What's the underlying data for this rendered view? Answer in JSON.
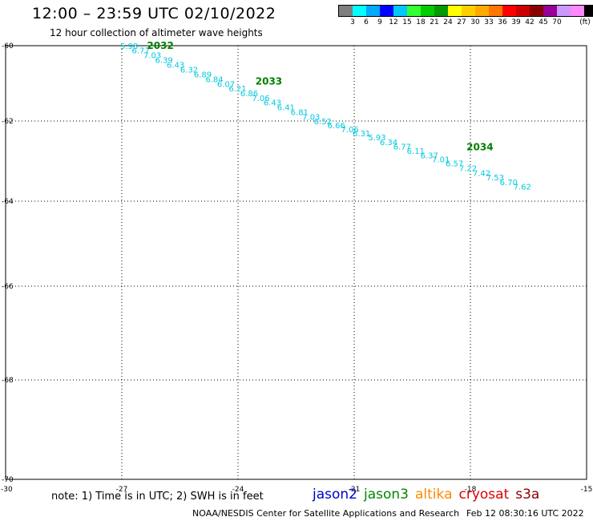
{
  "title": "12:00 – 23:59 UTC 02/10/2022",
  "subtitle": "12 hour collection of altimeter wave heights",
  "scale": {
    "colors": [
      "#7f7f7f",
      "#00ffff",
      "#00aaff",
      "#0000ff",
      "#00c8ff",
      "#33ff33",
      "#00cc00",
      "#009900",
      "#ffff00",
      "#ffd000",
      "#ffaa00",
      "#ff7700",
      "#ff0000",
      "#cc0000",
      "#880000",
      "#990099",
      "#cc99ff",
      "#ff88ff",
      "#000000"
    ],
    "labels": [
      "3",
      "6",
      "9",
      "12",
      "15",
      "18",
      "21",
      "24",
      "27",
      "30",
      "33",
      "36",
      "39",
      "42",
      "45",
      "70"
    ],
    "unit": "(ft)"
  },
  "axes": {
    "lon_range": [
      -30,
      -15
    ],
    "lat_range": [
      -70,
      -60
    ],
    "lon_ticks": [
      -27,
      -24,
      -21,
      -18,
      -15
    ],
    "lat_ticks": [
      -60,
      -62,
      -64,
      -66,
      -68,
      -70
    ],
    "corner_label": "-30",
    "lon_tick_labels": [
      "-27",
      "-24",
      "-21",
      "-18",
      "-15"
    ],
    "lat_tick_labels": [
      "-60",
      "-62",
      "-64",
      "-66",
      "-68",
      "-70"
    ]
  },
  "track": {
    "color": "#00c8e0",
    "label_color": "#008000",
    "points": [
      {
        "lon": -27.0,
        "lat": -60.0,
        "swh": "5.98"
      },
      {
        "lon": -26.7,
        "lat": -60.12,
        "swh": "6.77"
      },
      {
        "lon": -26.4,
        "lat": -60.24,
        "swh": "7.03"
      },
      {
        "lon": -26.1,
        "lat": -60.37,
        "swh": "6.39"
      },
      {
        "lon": -25.8,
        "lat": -60.5,
        "swh": "6.43"
      },
      {
        "lon": -25.45,
        "lat": -60.63,
        "swh": "6.32"
      },
      {
        "lon": -25.1,
        "lat": -60.76,
        "swh": "6.89"
      },
      {
        "lon": -24.8,
        "lat": -60.88,
        "swh": "6.84"
      },
      {
        "lon": -24.5,
        "lat": -61.01,
        "swh": "6.07"
      },
      {
        "lon": -24.2,
        "lat": -61.13,
        "swh": "6.21"
      },
      {
        "lon": -23.9,
        "lat": -61.25,
        "swh": "6.86"
      },
      {
        "lon": -23.6,
        "lat": -61.38,
        "swh": "7.06"
      },
      {
        "lon": -23.3,
        "lat": -61.5,
        "swh": "6.43"
      },
      {
        "lon": -22.95,
        "lat": -61.63,
        "swh": "6.41"
      },
      {
        "lon": -22.6,
        "lat": -61.76,
        "swh": "6.81"
      },
      {
        "lon": -22.3,
        "lat": -61.88,
        "swh": "7.03"
      },
      {
        "lon": -22.0,
        "lat": -62.0,
        "swh": "6.52"
      },
      {
        "lon": -21.65,
        "lat": -62.1,
        "swh": "6.66"
      },
      {
        "lon": -21.3,
        "lat": -62.2,
        "swh": "7.06"
      },
      {
        "lon": -21.0,
        "lat": -62.3,
        "swh": "6.31"
      },
      {
        "lon": -20.6,
        "lat": -62.4,
        "swh": "5.93"
      },
      {
        "lon": -20.3,
        "lat": -62.52,
        "swh": "6.34"
      },
      {
        "lon": -19.95,
        "lat": -62.63,
        "swh": "6.77"
      },
      {
        "lon": -19.6,
        "lat": -62.74,
        "swh": "6.11"
      },
      {
        "lon": -19.25,
        "lat": -62.85,
        "swh": "6.37"
      },
      {
        "lon": -18.95,
        "lat": -62.95,
        "swh": "7.01"
      },
      {
        "lon": -18.6,
        "lat": -63.05,
        "swh": "6.57"
      },
      {
        "lon": -18.25,
        "lat": -63.17,
        "swh": "7.22"
      },
      {
        "lon": -17.9,
        "lat": -63.29,
        "swh": "7.42"
      },
      {
        "lon": -17.55,
        "lat": -63.4,
        "swh": "7.53"
      },
      {
        "lon": -17.2,
        "lat": -63.52,
        "swh": "6.70"
      },
      {
        "lon": -16.85,
        "lat": -63.63,
        "swh": "7.62"
      }
    ],
    "hour_labels": [
      {
        "lon": -26.35,
        "lat": -60.0,
        "text": "2032"
      },
      {
        "lon": -23.55,
        "lat": -60.95,
        "text": "2033"
      },
      {
        "lon": -18.1,
        "lat": -62.65,
        "text": "2034"
      }
    ]
  },
  "note": "note:  1) Time is in UTC;  2) SWH is in feet",
  "satellites": [
    {
      "name": "jason2",
      "color": "#0000cc"
    },
    {
      "name": "jason3",
      "color": "#008800"
    },
    {
      "name": "altika",
      "color": "#ff8800"
    },
    {
      "name": "cryosat",
      "color": "#dd0000"
    },
    {
      "name": "s3a",
      "color": "#8b0000"
    }
  ],
  "credit": "NOAA/NESDIS Center for Satellite Applications and Research",
  "timestamp": "Feb 12 08:30:16 UTC 2022"
}
